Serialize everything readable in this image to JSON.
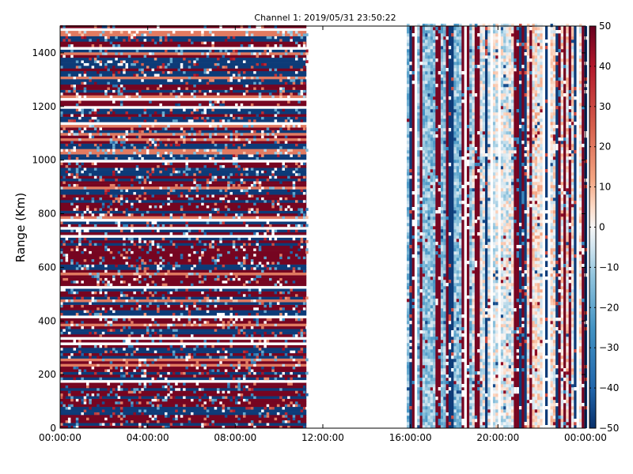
{
  "chart_data": {
    "type": "heatmap",
    "title": "Channel 1: 2019/05/31 23:50:22",
    "xlabel": "",
    "ylabel": "Range (Km)",
    "xlim": [
      "00:00:00",
      "24:00:00"
    ],
    "ylim": [
      0,
      1500
    ],
    "x_ticks": [
      "00:00:00",
      "04:00:00",
      "08:00:00",
      "12:00:00",
      "16:00:00",
      "20:00:00",
      "00:00:00"
    ],
    "y_ticks": [
      0,
      200,
      400,
      600,
      800,
      1000,
      1200,
      1400
    ],
    "colorbar": {
      "vmin": -50,
      "vmax": 50,
      "ticks": [
        50,
        40,
        30,
        20,
        10,
        0,
        -10,
        -20,
        -30,
        -40,
        -50
      ],
      "colormap": "RdBu_r",
      "low_color": "#08306b",
      "mid_color": "#f7f7f7",
      "high_color": "#67001f"
    },
    "data_segments": [
      {
        "time_start": "00:00:00",
        "time_end": "11:15:00",
        "pattern": "horizontal bands, saturated values (mostly ±50) alternating with range"
      },
      {
        "time_start": "11:15:00",
        "time_end": "15:50:00",
        "pattern": "no data"
      },
      {
        "time_start": "15:50:00",
        "time_end": "24:00:00",
        "pattern": "vertical stripes; mostly near 0 to -20 with scattered ±50 columns"
      }
    ]
  }
}
